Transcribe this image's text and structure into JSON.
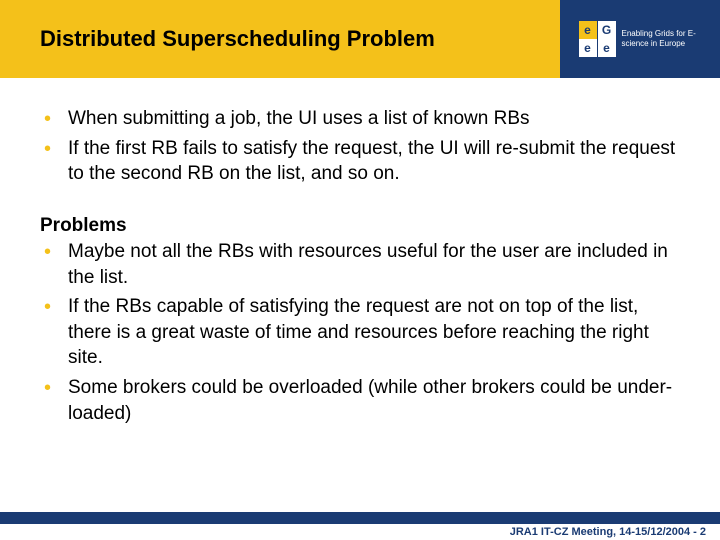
{
  "colors": {
    "yellow": "#f4c11a",
    "blue": "#1a3b73",
    "white": "#ffffff",
    "black": "#000000"
  },
  "header": {
    "title": "Distributed Superscheduling Problem",
    "logo_letters": [
      "e",
      "G",
      "e",
      "e"
    ],
    "logo_tagline": "Enabling Grids for E-science in Europe"
  },
  "body": {
    "intro_bullets": [
      "When submitting a job, the UI uses a list of known RBs",
      "If the first RB fails to satisfy the request, the UI will re-submit the request to the second RB on the list, and so on."
    ],
    "problems_heading": "Problems",
    "problems_bullets": [
      "Maybe not all the RBs with resources useful for the user are included in the list.",
      "If the RBs capable of satisfying the request are not on top of the list, there is a great waste of time and resources before reaching the right site.",
      "Some brokers could be overloaded (while other brokers could be under-loaded)"
    ]
  },
  "footer": {
    "text": "JRA1 IT-CZ Meeting, 14-15/12/2004  - 2"
  }
}
